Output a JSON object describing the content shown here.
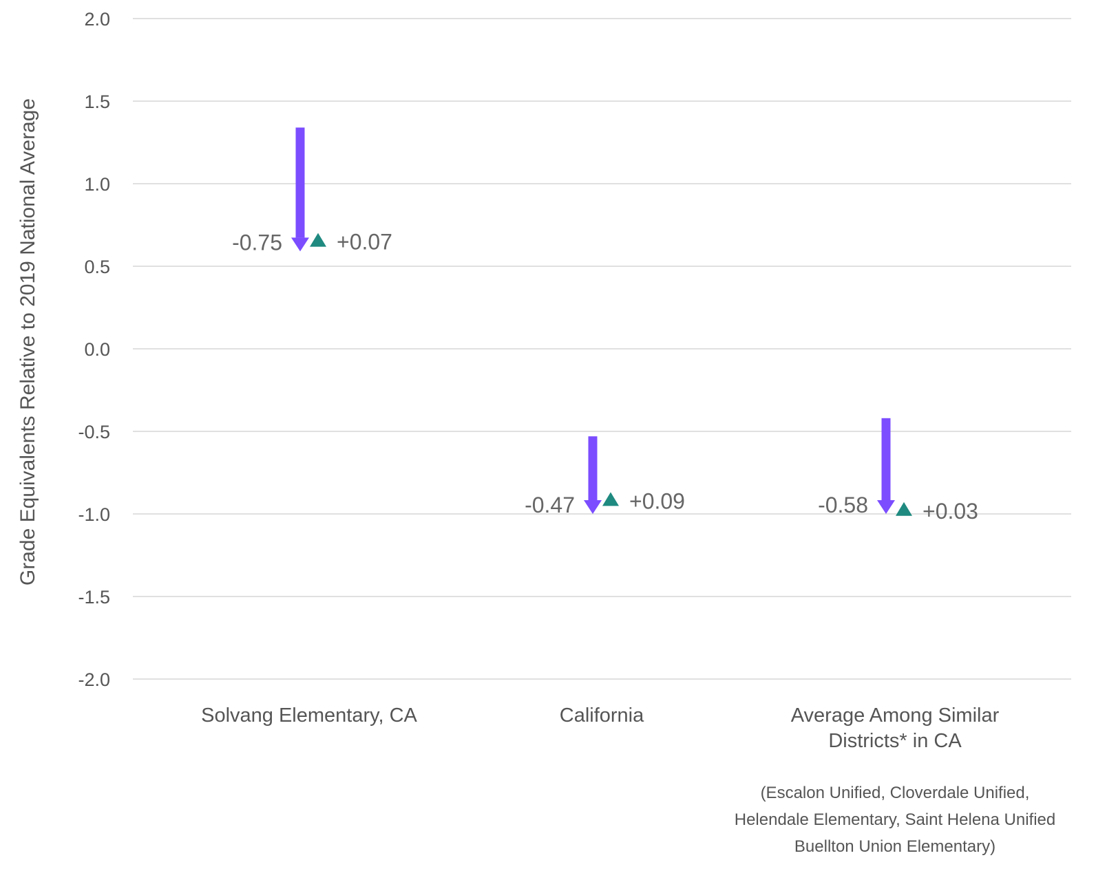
{
  "chart_data": {
    "type": "arrow-dot",
    "title": "",
    "ylabel": "Grade Equivalents Relative to 2019 National Average",
    "xlabel": "",
    "ylim": [
      -2.0,
      2.0
    ],
    "yticks": [
      "2.0",
      "1.5",
      "1.0",
      "0.5",
      "0.0",
      "-0.5",
      "-1.0",
      "-1.5",
      "-2.0"
    ],
    "ytick_values": [
      2.0,
      1.5,
      1.0,
      0.5,
      0.0,
      -0.5,
      -1.0,
      -1.5,
      -2.0
    ],
    "grid": true,
    "categories": [
      [
        "Solvang Elementary, CA"
      ],
      [
        "California"
      ],
      [
        "Average Among Similar",
        "Districts* in CA"
      ]
    ],
    "series": [
      {
        "start": [
          1.34,
          -0.53,
          -0.42
        ],
        "end": [
          0.59,
          -1.0,
          -1.0
        ],
        "labels": [
          "-0.75",
          "-0.47",
          "-0.58"
        ]
      },
      {
        "values": [
          0.66,
          -0.91,
          -0.97
        ],
        "labels": [
          "+0.07",
          "+0.09",
          "+0.03"
        ]
      }
    ],
    "colors": {
      "arrow": "#7b4dff",
      "marker": "#1f8a80"
    },
    "note": [
      "(Escalon Unified, Cloverdale Unified,",
      "Helendale Elementary, Saint Helena Unified",
      "Buellton Union Elementary)"
    ]
  }
}
